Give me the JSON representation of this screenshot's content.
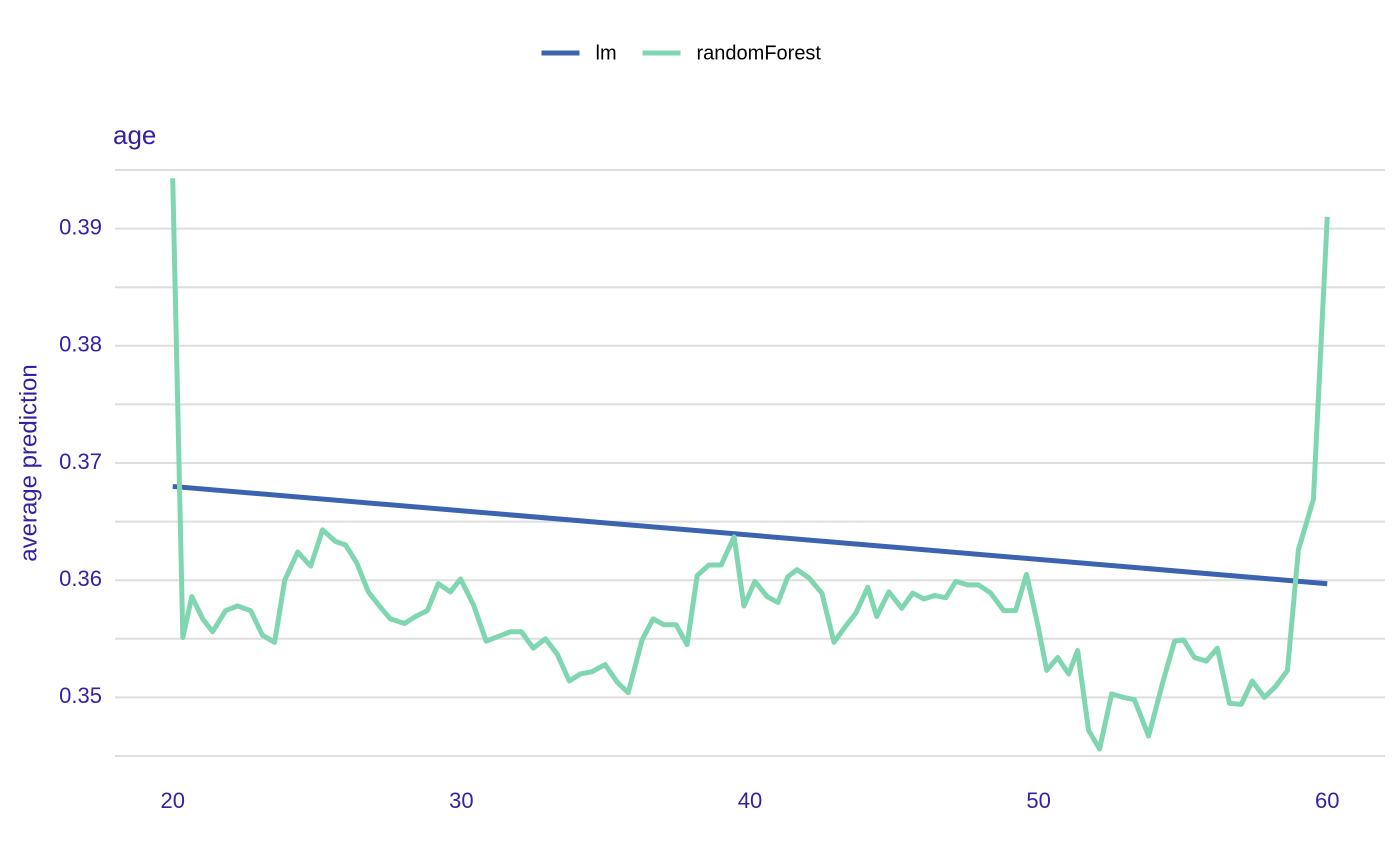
{
  "chart_data": {
    "type": "line",
    "title": "age",
    "y_label": "average prediction",
    "xlim": [
      18,
      62
    ],
    "xticks": [
      20,
      30,
      40,
      50,
      60
    ],
    "ylim": [
      0.345,
      0.395
    ],
    "yticks": [
      0.35,
      0.36,
      0.37,
      0.38,
      0.39
    ],
    "minor_yticks": [
      0.345,
      0.355,
      0.365,
      0.375,
      0.385,
      0.395
    ],
    "grid": true,
    "legend": "top",
    "series": [
      {
        "name": "lm",
        "color": "#3c63b0",
        "x": [
          20,
          60
        ],
        "values": [
          0.368,
          0.3597
        ]
      },
      {
        "name": "randomForest",
        "color": "#7fd6b1",
        "x": [
          20,
          20.35,
          20.66,
          21.04,
          21.38,
          21.83,
          22.25,
          22.7,
          23.11,
          23.53,
          23.88,
          24.33,
          24.78,
          25.19,
          25.64,
          25.99,
          26.37,
          26.78,
          27.16,
          27.54,
          28.03,
          28.41,
          28.82,
          29.2,
          29.62,
          29.97,
          30.42,
          30.86,
          31.28,
          31.7,
          32.08,
          32.49,
          32.91,
          33.32,
          33.74,
          34.12,
          34.53,
          34.98,
          35.4,
          35.78,
          36.26,
          36.64,
          37.02,
          37.44,
          37.82,
          38.17,
          38.58,
          39.0,
          39.45,
          39.79,
          40.17,
          40.59,
          40.97,
          41.31,
          41.63,
          42.04,
          42.49,
          42.91,
          43.29,
          43.67,
          44.08,
          44.39,
          44.81,
          45.26,
          45.64,
          46.02,
          46.4,
          46.78,
          47.13,
          47.54,
          47.92,
          48.34,
          48.79,
          49.2,
          49.58,
          49.97,
          50.28,
          50.66,
          51.04,
          51.35,
          51.73,
          52.11,
          52.53,
          52.94,
          53.32,
          53.81,
          54.29,
          54.71,
          55.02,
          55.4,
          55.81,
          56.19,
          56.61,
          57.02,
          57.4,
          57.82,
          58.2,
          58.62,
          59.0,
          59.52,
          60.0
        ],
        "values": [
          0.3943,
          0.3551,
          0.3586,
          0.3567,
          0.3556,
          0.3574,
          0.3578,
          0.3574,
          0.3553,
          0.3547,
          0.36,
          0.3624,
          0.3612,
          0.3643,
          0.3633,
          0.363,
          0.3615,
          0.359,
          0.3578,
          0.3567,
          0.3563,
          0.3569,
          0.3574,
          0.3597,
          0.359,
          0.3601,
          0.3579,
          0.3548,
          0.3552,
          0.3556,
          0.3556,
          0.3542,
          0.355,
          0.3537,
          0.3514,
          0.352,
          0.3522,
          0.3528,
          0.3513,
          0.3504,
          0.3549,
          0.3567,
          0.3562,
          0.3562,
          0.3545,
          0.3604,
          0.3613,
          0.3613,
          0.3637,
          0.3578,
          0.3599,
          0.3586,
          0.3581,
          0.3603,
          0.3609,
          0.3602,
          0.3589,
          0.3547,
          0.356,
          0.3572,
          0.3594,
          0.3569,
          0.359,
          0.3576,
          0.3589,
          0.3584,
          0.3587,
          0.3585,
          0.3599,
          0.3596,
          0.3596,
          0.3589,
          0.3574,
          0.3574,
          0.3605,
          0.3562,
          0.3523,
          0.3534,
          0.352,
          0.354,
          0.3472,
          0.3456,
          0.3503,
          0.35,
          0.3498,
          0.3467,
          0.3512,
          0.3548,
          0.3549,
          0.3534,
          0.3531,
          0.3542,
          0.3495,
          0.3494,
          0.3514,
          0.35,
          0.3509,
          0.3523,
          0.3626,
          0.3669,
          0.391
        ]
      }
    ]
  }
}
